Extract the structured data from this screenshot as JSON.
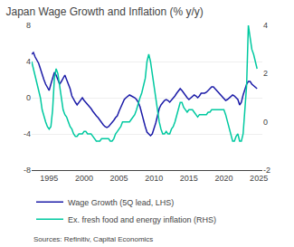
{
  "chart_data": {
    "type": "line",
    "title": "Japan Wage Growth and Inflation (% y/y)",
    "annotations": [
      "Sources: Refinitiv, Capital Economics"
    ],
    "x": [
      1992.5,
      1992.75,
      1993.0,
      1993.25,
      1993.5,
      1993.75,
      1994.0,
      1994.25,
      1994.5,
      1994.75,
      1995.0,
      1995.25,
      1995.5,
      1995.75,
      1996.0,
      1996.25,
      1996.5,
      1996.75,
      1997.0,
      1997.25,
      1997.5,
      1997.75,
      1998.0,
      1998.25,
      1998.5,
      1998.75,
      1999.0,
      1999.25,
      1999.5,
      1999.75,
      2000.0,
      2000.25,
      2000.5,
      2000.75,
      2001.0,
      2001.25,
      2001.5,
      2001.75,
      2002.0,
      2002.25,
      2002.5,
      2002.75,
      2003.0,
      2003.25,
      2003.5,
      2003.75,
      2004.0,
      2004.25,
      2004.5,
      2004.75,
      2005.0,
      2005.25,
      2005.5,
      2005.75,
      2006.0,
      2006.25,
      2006.5,
      2006.75,
      2007.0,
      2007.25,
      2007.5,
      2007.75,
      2008.0,
      2008.25,
      2008.5,
      2008.75,
      2009.0,
      2009.25,
      2009.5,
      2009.75,
      2010.0,
      2010.25,
      2010.5,
      2010.75,
      2011.0,
      2011.25,
      2011.5,
      2011.75,
      2012.0,
      2012.25,
      2012.5,
      2012.75,
      2013.0,
      2013.25,
      2013.5,
      2013.75,
      2014.0,
      2014.25,
      2014.5,
      2014.75,
      2015.0,
      2015.25,
      2015.5,
      2015.75,
      2016.0,
      2016.25,
      2016.5,
      2016.75,
      2017.0,
      2017.25,
      2017.5,
      2017.75,
      2018.0,
      2018.25,
      2018.5,
      2018.75,
      2019.0,
      2019.25,
      2019.5,
      2019.75,
      2020.0,
      2020.25,
      2020.5,
      2020.75,
      2021.0,
      2021.25,
      2021.5,
      2021.75,
      2022.0,
      2022.25,
      2022.5,
      2022.75,
      2023.0,
      2023.25,
      2023.5,
      2023.75,
      2024.0,
      2024.25,
      2024.5,
      2024.75
    ],
    "series": [
      {
        "name": "Wage Growth (5Q lead, LHS)",
        "color": "#1c1ca8",
        "values": [
          4.8,
          5.0,
          4.5,
          4.2,
          3.8,
          3.2,
          2.5,
          2.0,
          1.5,
          1.2,
          0.8,
          1.5,
          2.2,
          2.8,
          2.5,
          2.0,
          1.5,
          1.8,
          2.2,
          2.5,
          2.0,
          1.5,
          1.0,
          0.2,
          -0.2,
          -0.5,
          -0.8,
          -0.5,
          -0.2,
          0.0,
          -0.3,
          -0.5,
          -0.8,
          -1.0,
          -1.2,
          -1.5,
          -1.8,
          -2.0,
          -2.2,
          -2.5,
          -2.8,
          -3.0,
          -3.2,
          -3.3,
          -3.2,
          -3.0,
          -2.8,
          -2.5,
          -2.2,
          -2.0,
          -1.5,
          -1.0,
          -0.5,
          -0.2,
          0.0,
          0.2,
          0.3,
          0.2,
          0.1,
          0.0,
          -0.2,
          -0.5,
          -1.0,
          -1.8,
          -2.5,
          -3.2,
          -3.8,
          -4.0,
          -4.2,
          -4.0,
          -3.5,
          -2.8,
          -2.0,
          -1.2,
          -0.8,
          -0.5,
          -0.3,
          -0.2,
          -0.3,
          -0.5,
          -0.3,
          0.0,
          0.2,
          0.5,
          0.8,
          1.0,
          0.8,
          0.5,
          0.3,
          0.0,
          -0.2,
          0.0,
          0.2,
          0.3,
          0.2,
          0.0,
          0.2,
          0.5,
          0.5,
          0.5,
          0.6,
          0.8,
          1.0,
          1.2,
          1.2,
          1.0,
          0.8,
          0.5,
          0.3,
          0.2,
          0.0,
          -0.3,
          -0.2,
          0.0,
          0.2,
          0.3,
          0.2,
          0.0,
          -0.2,
          -0.8,
          -0.5,
          0.3,
          1.0,
          1.5,
          1.8,
          1.8,
          1.5,
          1.3,
          1.2,
          1.0
        ]
      },
      {
        "name": "Ex. fresh food and energy inflation (RHS)",
        "color": "#00c9a0",
        "axis": "y2",
        "values": [
          2.5,
          2.2,
          1.8,
          1.5,
          1.2,
          1.0,
          0.5,
          0.2,
          0.0,
          -0.2,
          -0.3,
          -0.2,
          0.5,
          1.8,
          2.2,
          2.0,
          1.5,
          1.0,
          0.5,
          0.3,
          0.2,
          0.0,
          -0.2,
          -0.3,
          -0.5,
          -0.6,
          -0.6,
          -0.5,
          -0.5,
          -0.5,
          -0.4,
          -0.4,
          -0.5,
          -0.5,
          -0.5,
          -0.6,
          -0.7,
          -0.8,
          -0.8,
          -0.8,
          -0.7,
          -0.7,
          -0.7,
          -0.7,
          -0.7,
          -0.8,
          -0.8,
          -0.7,
          -0.5,
          -0.4,
          -0.3,
          -0.2,
          0.0,
          0.0,
          0.0,
          0.0,
          0.0,
          0.1,
          0.2,
          0.3,
          0.5,
          0.8,
          1.0,
          1.2,
          1.5,
          1.8,
          2.5,
          2.8,
          2.5,
          2.0,
          1.5,
          1.0,
          0.5,
          0.0,
          -0.3,
          -0.5,
          -0.5,
          -0.4,
          -0.5,
          -0.5,
          -0.3,
          -0.2,
          0.0,
          0.3,
          0.5,
          0.8,
          0.8,
          0.6,
          0.5,
          0.4,
          0.5,
          0.5,
          0.5,
          0.4,
          0.3,
          0.2,
          0.3,
          0.3,
          0.3,
          0.3,
          0.3,
          0.4,
          0.4,
          0.5,
          0.5,
          0.5,
          0.5,
          0.5,
          0.5,
          0.5,
          0.5,
          0.3,
          0.0,
          -0.3,
          -0.5,
          -0.8,
          -0.8,
          -0.6,
          -0.5,
          -0.8,
          -0.8,
          -0.5,
          0.5,
          1.5,
          4.0,
          3.5,
          3.0,
          2.8,
          2.5,
          2.2
        ]
      }
    ],
    "xlim": [
      1992.5,
      2025.5
    ],
    "xticks": [
      1995,
      2000,
      2005,
      2010,
      2015,
      2020,
      2025
    ],
    "ylim": [
      -8,
      8
    ],
    "yticks": [
      -8,
      -4,
      0,
      4,
      8
    ],
    "y2lim": [
      -2,
      4
    ],
    "y2ticks": [
      -2,
      0,
      2,
      4
    ],
    "grid": true,
    "legend": "bottom"
  }
}
